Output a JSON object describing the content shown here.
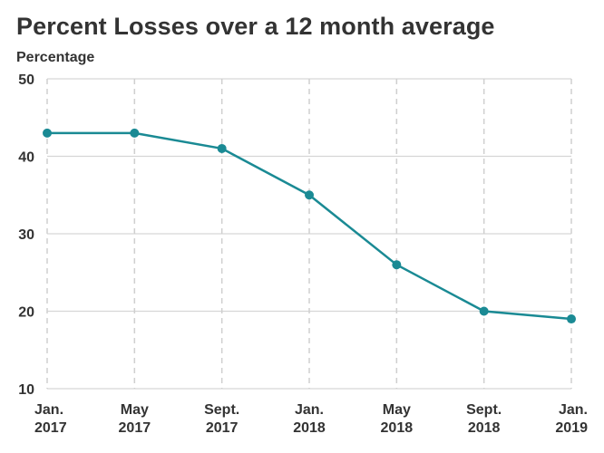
{
  "chart_data": {
    "type": "line",
    "title": "Percent Losses over a 12 month average",
    "ylabel": "Percentage",
    "xlabel": "",
    "categories": [
      [
        "Jan.",
        "2017"
      ],
      [
        "May",
        "2017"
      ],
      [
        "Sept.",
        "2017"
      ],
      [
        "Jan.",
        "2018"
      ],
      [
        "May",
        "2018"
      ],
      [
        "Sept.",
        "2018"
      ],
      [
        "Jan.",
        "2019"
      ]
    ],
    "series": [
      {
        "values": [
          43,
          43,
          41,
          35,
          26,
          20,
          19
        ],
        "color": "#1a8a94"
      }
    ],
    "ylim": [
      10,
      50
    ],
    "yticks": [
      10,
      20,
      30,
      40,
      50
    ],
    "grid": true,
    "grid_style": "dashed-vertical, solid-horizontal",
    "legend": "none"
  }
}
